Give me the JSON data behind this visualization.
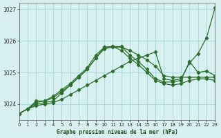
{
  "title": "Graphe pression niveau de la mer (hPa)",
  "background_color": "#d9f0f0",
  "grid_color": "#aadddd",
  "line_color": "#2d6e2d",
  "xlim": [
    0,
    23
  ],
  "ylim": [
    1023.5,
    1027.2
  ],
  "yticks": [
    1024,
    1025,
    1026,
    1027
  ],
  "xticks": [
    0,
    1,
    2,
    3,
    4,
    5,
    6,
    7,
    8,
    9,
    10,
    11,
    12,
    13,
    14,
    15,
    16,
    17,
    18,
    19,
    20,
    21,
    22,
    23
  ],
  "series": [
    [
      1023.7,
      1023.85,
      1023.95,
      1024.0,
      1024.05,
      1024.15,
      1024.3,
      1024.45,
      1024.6,
      1024.75,
      1024.9,
      1025.05,
      1025.2,
      1025.35,
      1025.45,
      1025.55,
      1025.65,
      1024.8,
      1024.75,
      1024.8,
      1025.3,
      1025.6,
      1026.1,
      1027.05
    ],
    [
      1023.7,
      1023.85,
      1024.0,
      1024.05,
      1024.1,
      1024.35,
      1024.6,
      1024.85,
      1025.1,
      1025.45,
      1025.75,
      1025.8,
      1025.8,
      1025.7,
      1025.55,
      1025.4,
      1025.2,
      1024.9,
      1024.85,
      1024.85,
      1024.85,
      1024.85,
      1024.85,
      1024.85
    ],
    [
      1023.7,
      1023.85,
      1024.05,
      1024.1,
      1024.2,
      1024.4,
      1024.6,
      1024.85,
      1025.1,
      1025.45,
      1025.8,
      1025.82,
      1025.82,
      1025.55,
      1025.35,
      1025.1,
      1024.8,
      1024.7,
      1024.7,
      1024.75,
      1025.35,
      1025.0,
      1025.05,
      1024.9
    ],
    [
      1023.7,
      1023.85,
      1024.1,
      1024.1,
      1024.25,
      1024.45,
      1024.65,
      1024.9,
      1025.15,
      1025.55,
      1025.8,
      1025.82,
      1025.7,
      1025.45,
      1025.25,
      1025.0,
      1024.75,
      1024.65,
      1024.6,
      1024.65,
      1024.75,
      1024.8,
      1024.8,
      1024.75
    ]
  ]
}
